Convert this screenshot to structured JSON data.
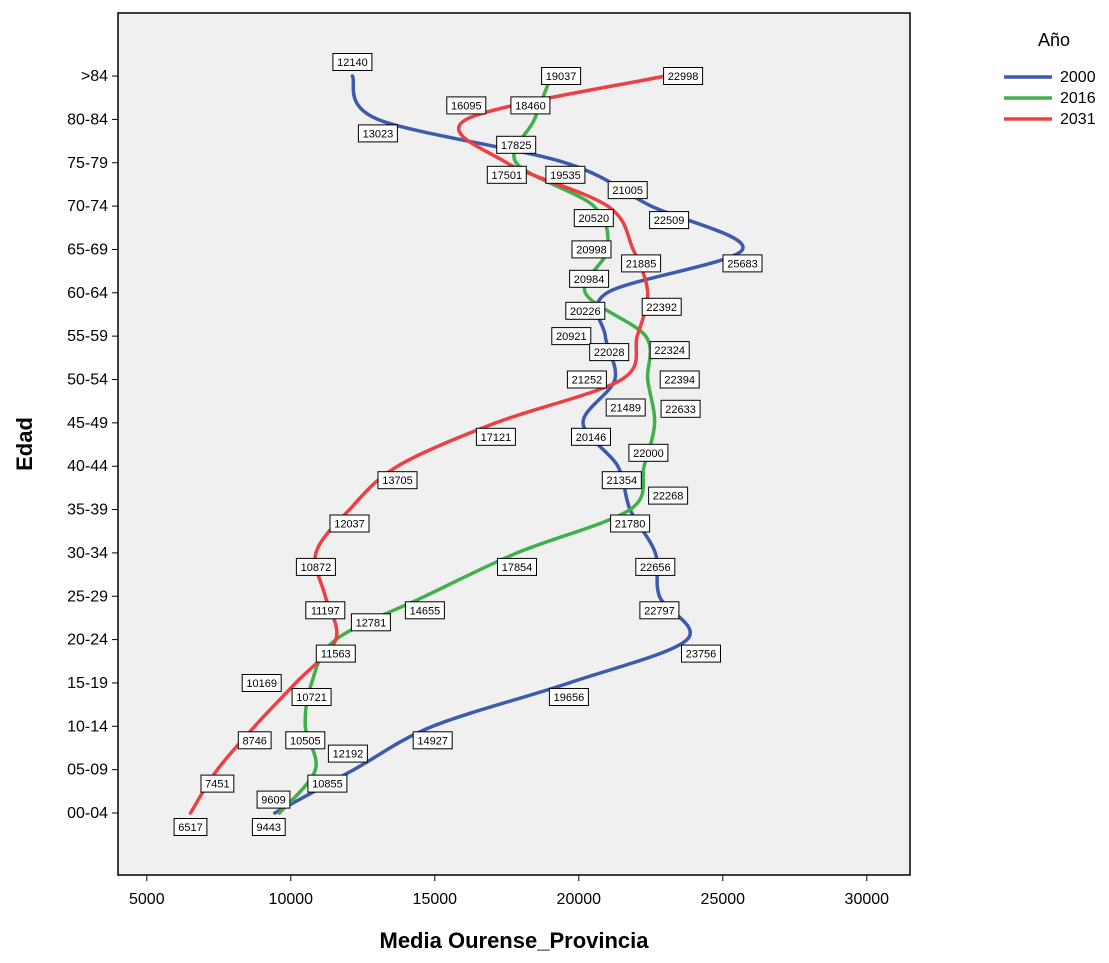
{
  "chart_data": {
    "type": "line",
    "title": "",
    "xlabel": "Media Ourense_Provincia",
    "ylabel": "Edad",
    "xlim": [
      4000,
      31500
    ],
    "x_ticks": [
      5000,
      10000,
      15000,
      20000,
      25000,
      30000
    ],
    "categories": [
      "00-04",
      "05-09",
      "10-14",
      "15-19",
      "20-24",
      "25-29",
      "30-34",
      "35-39",
      "40-44",
      "45-49",
      "50-54",
      "55-59",
      "60-64",
      "65-69",
      "70-74",
      "75-79",
      "80-84",
      ">84"
    ],
    "grid": false,
    "plot_background": "#f0f0f0",
    "legend": {
      "title": "Año",
      "position": "right-top"
    },
    "series": [
      {
        "name": "2000",
        "color": "#3d5aad",
        "values": [
          9443,
          12192,
          14927,
          19656,
          23756,
          22797,
          22656,
          21780,
          21354,
          20146,
          21252,
          20921,
          20984,
          25683,
          22509,
          19535,
          13023,
          12140
        ]
      },
      {
        "name": "2016",
        "color": "#41b04a",
        "values": [
          9609,
          10855,
          10505,
          10721,
          11563,
          14655,
          17854,
          21780,
          22268,
          22633,
          22394,
          22324,
          20226,
          20998,
          20520,
          17825,
          18460,
          19037
        ]
      },
      {
        "name": "2031",
        "color": "#ec4045",
        "values": [
          6517,
          7451,
          8746,
          10169,
          11563,
          11197,
          10872,
          12037,
          13705,
          17121,
          21489,
          22028,
          22392,
          21885,
          21005,
          17501,
          16095,
          22998
        ]
      }
    ],
    "data_labels": [
      {
        "text": "12140",
        "x": 12140,
        "cat": 17,
        "dx": 0,
        "dy": -14
      },
      {
        "text": "16095",
        "x": 16095,
        "cat": 16,
        "dx": 0,
        "dy": -14
      },
      {
        "text": "18460",
        "x": 18460,
        "cat": 16,
        "dx": -4,
        "dy": -14
      },
      {
        "text": "19037",
        "x": 19037,
        "cat": 17,
        "dx": 10,
        "dy": 0
      },
      {
        "text": "22998",
        "x": 22998,
        "cat": 17,
        "dx": 18,
        "dy": 0
      },
      {
        "text": "13023",
        "x": 13023,
        "cat": 16,
        "dx": 0,
        "dy": 14
      },
      {
        "text": "17825",
        "x": 17825,
        "cat": 15,
        "dx": 0,
        "dy": -18
      },
      {
        "text": "17501",
        "x": 17501,
        "cat": 15,
        "dx": 0,
        "dy": 12
      },
      {
        "text": "19535",
        "x": 19535,
        "cat": 15,
        "dx": 0,
        "dy": 12
      },
      {
        "text": "21005",
        "x": 21005,
        "cat": 14,
        "dx": 20,
        "dy": -16
      },
      {
        "text": "20520",
        "x": 20520,
        "cat": 14,
        "dx": 0,
        "dy": 12
      },
      {
        "text": "22509",
        "x": 22509,
        "cat": 14,
        "dx": 18,
        "dy": 14
      },
      {
        "text": "20998",
        "x": 20998,
        "cat": 13,
        "dx": -16,
        "dy": 0
      },
      {
        "text": "21885",
        "x": 21885,
        "cat": 13,
        "dx": 8,
        "dy": 14
      },
      {
        "text": "25683",
        "x": 25683,
        "cat": 13,
        "dx": 0,
        "dy": 14
      },
      {
        "text": "20984",
        "x": 20984,
        "cat": 12,
        "dx": -18,
        "dy": -14
      },
      {
        "text": "20226",
        "x": 20226,
        "cat": 12,
        "dx": 0,
        "dy": 18
      },
      {
        "text": "22392",
        "x": 22392,
        "cat": 12,
        "dx": 14,
        "dy": 14
      },
      {
        "text": "20921",
        "x": 20921,
        "cat": 11,
        "dx": -34,
        "dy": 0
      },
      {
        "text": "22028",
        "x": 22028,
        "cat": 11,
        "dx": -28,
        "dy": 16
      },
      {
        "text": "22324",
        "x": 22324,
        "cat": 11,
        "dx": 24,
        "dy": 14
      },
      {
        "text": "21252",
        "x": 21252,
        "cat": 10,
        "dx": -28,
        "dy": 0
      },
      {
        "text": "22394",
        "x": 22394,
        "cat": 10,
        "dx": 32,
        "dy": 0
      },
      {
        "text": "21489",
        "x": 21489,
        "cat": 10,
        "dx": 4,
        "dy": 28
      },
      {
        "text": "22633",
        "x": 22633,
        "cat": 9,
        "dx": 26,
        "dy": -14
      },
      {
        "text": "17121",
        "x": 17121,
        "cat": 9,
        "dx": 0,
        "dy": 14
      },
      {
        "text": "20146",
        "x": 20146,
        "cat": 9,
        "dx": 8,
        "dy": 14
      },
      {
        "text": "22000",
        "x": 22000,
        "cat": 9,
        "dx": 12,
        "dy": 30
      },
      {
        "text": "21354",
        "x": 21354,
        "cat": 8,
        "dx": 4,
        "dy": 14
      },
      {
        "text": "13705",
        "x": 13705,
        "cat": 8,
        "dx": 0,
        "dy": 14
      },
      {
        "text": "22268",
        "x": 22268,
        "cat": 7,
        "dx": 24,
        "dy": -14
      },
      {
        "text": "21780",
        "x": 21780,
        "cat": 7,
        "dx": 0,
        "dy": 14
      },
      {
        "text": "12037",
        "x": 12037,
        "cat": 7,
        "dx": 0,
        "dy": 14
      },
      {
        "text": "10872",
        "x": 10872,
        "cat": 6,
        "dx": 0,
        "dy": 14
      },
      {
        "text": "17854",
        "x": 17854,
        "cat": 6,
        "dx": 0,
        "dy": 14
      },
      {
        "text": "22656",
        "x": 22656,
        "cat": 6,
        "dx": 0,
        "dy": 14
      },
      {
        "text": "11197",
        "x": 11197,
        "cat": 5,
        "dx": 0,
        "dy": 14
      },
      {
        "text": "14655",
        "x": 14655,
        "cat": 5,
        "dx": 0,
        "dy": 14
      },
      {
        "text": "12781",
        "x": 12781,
        "cat": 5,
        "dx": 0,
        "dy": 26
      },
      {
        "text": "22797",
        "x": 22797,
        "cat": 5,
        "dx": 0,
        "dy": 14
      },
      {
        "text": "11563",
        "x": 11563,
        "cat": 4,
        "dx": 0,
        "dy": 14
      },
      {
        "text": "23756",
        "x": 23756,
        "cat": 4,
        "dx": 14,
        "dy": 14
      },
      {
        "text": "10169",
        "x": 10169,
        "cat": 3,
        "dx": -34,
        "dy": 0
      },
      {
        "text": "10721",
        "x": 10721,
        "cat": 3,
        "dx": 0,
        "dy": 14
      },
      {
        "text": "19656",
        "x": 19656,
        "cat": 3,
        "dx": 0,
        "dy": 14
      },
      {
        "text": "8746",
        "x": 8746,
        "cat": 2,
        "dx": 0,
        "dy": 14
      },
      {
        "text": "10505",
        "x": 10505,
        "cat": 2,
        "dx": 0,
        "dy": 14
      },
      {
        "text": "14927",
        "x": 14927,
        "cat": 2,
        "dx": 0,
        "dy": 14
      },
      {
        "text": "12192",
        "x": 12192,
        "cat": 1,
        "dx": -6,
        "dy": -16
      },
      {
        "text": "7451",
        "x": 7451,
        "cat": 1,
        "dx": 0,
        "dy": 14
      },
      {
        "text": "10855",
        "x": 10855,
        "cat": 1,
        "dx": 12,
        "dy": 14
      },
      {
        "text": "9609",
        "x": 9609,
        "cat": 1,
        "dx": -6,
        "dy": 30
      },
      {
        "text": "6517",
        "x": 6517,
        "cat": 0,
        "dx": 0,
        "dy": 14
      },
      {
        "text": "9443",
        "x": 9443,
        "cat": 0,
        "dx": -6,
        "dy": 14
      }
    ]
  }
}
